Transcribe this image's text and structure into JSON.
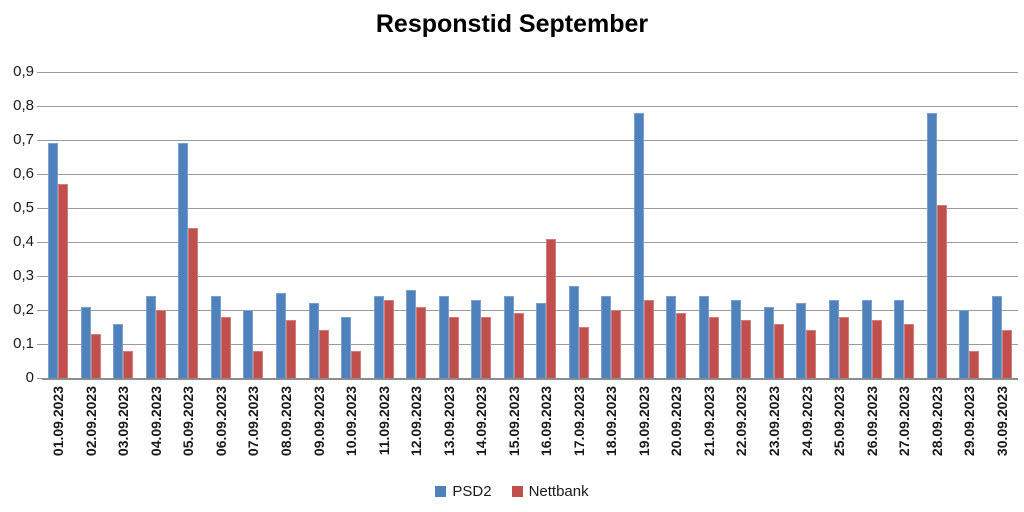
{
  "chart_data": {
    "type": "bar",
    "title": "Responstid September",
    "categories": [
      "01.09.2023",
      "02.09.2023",
      "03.09.2023",
      "04.09.2023",
      "05.09.2023",
      "06.09.2023",
      "07.09.2023",
      "08.09.2023",
      "09.09.2023",
      "10.09.2023",
      "11.09.2023",
      "12.09.2023",
      "13.09.2023",
      "14.09.2023",
      "15.09.2023",
      "16.09.2023",
      "17.09.2023",
      "18.09.2023",
      "19.09.2023",
      "20.09.2023",
      "21.09.2023",
      "22.09.2023",
      "23.09.2023",
      "24.09.2023",
      "25.09.2023",
      "26.09.2023",
      "27.09.2023",
      "28.09.2023",
      "29.09.2023",
      "30.09.2023"
    ],
    "series": [
      {
        "name": "PSD2",
        "color": "#4f81bd",
        "values": [
          0.69,
          0.21,
          0.16,
          0.24,
          0.69,
          0.24,
          0.2,
          0.25,
          0.22,
          0.18,
          0.24,
          0.26,
          0.24,
          0.23,
          0.24,
          0.22,
          0.27,
          0.24,
          0.78,
          0.24,
          0.24,
          0.23,
          0.21,
          0.22,
          0.23,
          0.23,
          0.23,
          0.78,
          0.2,
          0.24
        ]
      },
      {
        "name": "Nettbank",
        "color": "#c0504d",
        "values": [
          0.57,
          0.13,
          0.08,
          0.2,
          0.44,
          0.18,
          0.08,
          0.17,
          0.14,
          0.08,
          0.23,
          0.21,
          0.18,
          0.18,
          0.19,
          0.41,
          0.15,
          0.2,
          0.23,
          0.19,
          0.18,
          0.17,
          0.16,
          0.14,
          0.18,
          0.17,
          0.16,
          0.51,
          0.08,
          0.14
        ]
      }
    ],
    "xlabel": "",
    "ylabel": "",
    "ylim": [
      0,
      0.9
    ],
    "ytick_step": 0.1,
    "ytick_labels": [
      "0",
      "0,1",
      "0,2",
      "0,3",
      "0,4",
      "0,5",
      "0,6",
      "0,7",
      "0,8",
      "0,9"
    ],
    "grid": true,
    "legend_position": "bottom"
  },
  "colors": {
    "gridline": "#9b9b9b",
    "axis": "#8c8c8c",
    "text": "#1a1a1a"
  }
}
